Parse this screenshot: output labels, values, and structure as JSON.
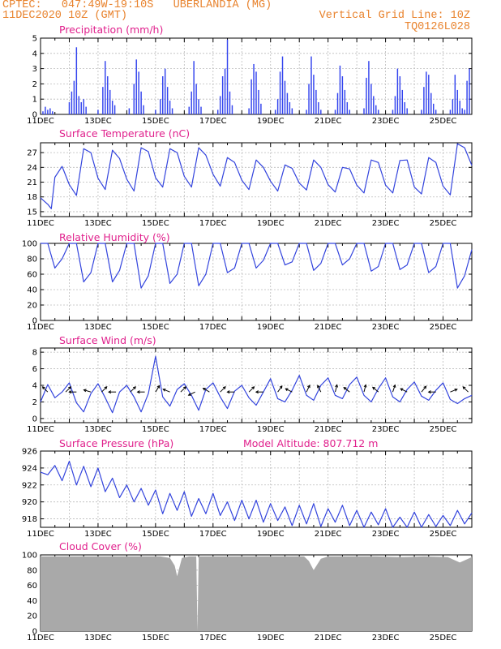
{
  "header": {
    "source_line": "CPTEC:   047:49W-19:10S   UBERLANDIA (MG)",
    "run_line": "11DEC2020 10Z (GMT)",
    "grid_note": "Vertical Grid Line: 10Z",
    "product_code": "TQ0126L028"
  },
  "colors": {
    "line": "#3344dd",
    "bar": "#3344ee",
    "cloud": "#a9a9a9",
    "title": "#e0208c",
    "header": "#e8822c"
  },
  "x_labels": [
    "11DEC",
    "13DEC",
    "15DEC",
    "17DEC",
    "19DEC",
    "21DEC",
    "23DEC",
    "25DEC"
  ],
  "x_range_hours": [
    0,
    360
  ],
  "chart_data": [
    {
      "type": "bar",
      "title": "Precipitation (mm/h)",
      "ylim": [
        0,
        5
      ],
      "yticks": [
        0,
        1,
        2,
        3,
        4,
        5
      ],
      "x": [
        2,
        4,
        6,
        8,
        10,
        24,
        26,
        28,
        30,
        32,
        34,
        36,
        38,
        48,
        52,
        54,
        56,
        58,
        60,
        62,
        74,
        78,
        80,
        82,
        84,
        86,
        96,
        100,
        102,
        104,
        106,
        108,
        110,
        124,
        126,
        128,
        130,
        132,
        134,
        148,
        150,
        152,
        154,
        156,
        158,
        160,
        174,
        176,
        178,
        180,
        182,
        184,
        196,
        198,
        200,
        202,
        204,
        206,
        208,
        210,
        222,
        224,
        226,
        228,
        230,
        232,
        234,
        246,
        248,
        250,
        252,
        254,
        256,
        258,
        270,
        272,
        274,
        276,
        278,
        280,
        282,
        294,
        296,
        298,
        300,
        302,
        304,
        306,
        318,
        320,
        322,
        324,
        326,
        328,
        330,
        342,
        344,
        346,
        348,
        350,
        352,
        354,
        356,
        358
      ],
      "values": [
        0.2,
        0.5,
        0.3,
        0.4,
        0.2,
        0.8,
        1.5,
        2.2,
        4.4,
        1.2,
        0.8,
        1.0,
        0.5,
        0.3,
        1.8,
        3.5,
        2.5,
        1.6,
        0.9,
        0.6,
        0.4,
        2.0,
        3.6,
        2.8,
        1.5,
        0.6,
        0.3,
        1.0,
        2.5,
        3.0,
        1.8,
        0.9,
        0.4,
        0.5,
        1.5,
        3.5,
        2.0,
        1.0,
        0.5,
        0.3,
        1.2,
        2.5,
        3.0,
        4.9,
        1.5,
        0.6,
        0.4,
        2.3,
        3.3,
        2.8,
        1.6,
        0.7,
        0.3,
        1.0,
        2.8,
        3.8,
        2.2,
        1.4,
        0.8,
        0.4,
        0.3,
        2.0,
        3.8,
        2.6,
        1.6,
        0.8,
        0.3,
        0.3,
        1.4,
        3.2,
        2.5,
        1.6,
        0.8,
        0.3,
        0.4,
        2.4,
        3.5,
        2.0,
        1.2,
        0.6,
        0.3,
        0.3,
        1.2,
        3.0,
        2.5,
        1.6,
        0.8,
        0.4,
        0.3,
        1.8,
        2.8,
        2.6,
        1.4,
        0.7,
        0.3,
        0.3,
        1.0,
        2.6,
        1.6,
        0.9,
        0.4,
        0.3,
        2.2,
        3.0
      ]
    },
    {
      "type": "line",
      "title": "Surface Temperature (nC)",
      "ylim": [
        14,
        29
      ],
      "yticks": [
        15,
        18,
        21,
        24,
        27
      ],
      "x": [
        0,
        6,
        9,
        12,
        18,
        24,
        30,
        36,
        42,
        48,
        54,
        60,
        66,
        72,
        78,
        84,
        90,
        96,
        102,
        108,
        114,
        120,
        126,
        132,
        138,
        144,
        150,
        156,
        162,
        168,
        174,
        180,
        186,
        192,
        198,
        204,
        210,
        216,
        222,
        228,
        234,
        240,
        246,
        252,
        258,
        264,
        270,
        276,
        282,
        288,
        294,
        300,
        306,
        312,
        318,
        324,
        330,
        336,
        342,
        348,
        354,
        360
      ],
      "values": [
        17.8,
        16.5,
        15.6,
        22.0,
        24.2,
        20.5,
        18.3,
        27.8,
        27.0,
        21.8,
        19.5,
        27.5,
        25.8,
        21.6,
        19.2,
        28.0,
        27.2,
        21.9,
        20.0,
        27.8,
        27.0,
        22.2,
        20.0,
        28.0,
        26.5,
        22.6,
        20.2,
        26.0,
        25.0,
        21.4,
        19.5,
        25.5,
        24.0,
        21.2,
        19.2,
        24.5,
        23.8,
        20.8,
        19.4,
        25.5,
        24.0,
        20.5,
        19.0,
        24.0,
        23.7,
        20.4,
        18.8,
        25.5,
        25.0,
        20.4,
        18.8,
        25.4,
        25.5,
        20.0,
        18.6,
        26.0,
        25.0,
        20.2,
        18.4,
        28.8,
        28.0,
        24.4
      ]
    },
    {
      "type": "line",
      "title": "Relative Humidity (%)",
      "ylim": [
        0,
        100
      ],
      "yticks": [
        0,
        20,
        40,
        60,
        80,
        100
      ],
      "x": [
        0,
        6,
        12,
        18,
        24,
        30,
        36,
        42,
        48,
        54,
        60,
        66,
        72,
        78,
        84,
        90,
        96,
        102,
        108,
        114,
        120,
        126,
        132,
        138,
        144,
        150,
        156,
        162,
        168,
        174,
        180,
        186,
        192,
        198,
        204,
        210,
        216,
        222,
        228,
        234,
        240,
        246,
        252,
        258,
        264,
        270,
        276,
        282,
        288,
        294,
        300,
        306,
        312,
        318,
        324,
        330,
        336,
        342,
        348,
        354,
        360
      ],
      "values": [
        100,
        100,
        68,
        80,
        100,
        100,
        50,
        62,
        100,
        100,
        50,
        65,
        100,
        100,
        42,
        58,
        100,
        100,
        48,
        60,
        100,
        100,
        45,
        60,
        100,
        100,
        62,
        68,
        100,
        100,
        68,
        78,
        100,
        100,
        72,
        76,
        100,
        100,
        65,
        74,
        100,
        100,
        72,
        80,
        100,
        100,
        64,
        70,
        100,
        100,
        66,
        72,
        100,
        100,
        62,
        70,
        100,
        100,
        42,
        58,
        92
      ]
    },
    {
      "type": "line",
      "title": "Surface Wind (m/s)",
      "ylim": [
        -0.5,
        8.5
      ],
      "yticks": [
        0,
        2,
        4,
        6,
        8
      ],
      "x": [
        0,
        6,
        12,
        18,
        24,
        30,
        36,
        42,
        48,
        54,
        60,
        66,
        72,
        78,
        84,
        90,
        96,
        102,
        108,
        114,
        120,
        126,
        132,
        138,
        144,
        150,
        156,
        162,
        168,
        174,
        180,
        186,
        192,
        198,
        204,
        210,
        216,
        222,
        228,
        234,
        240,
        246,
        252,
        258,
        264,
        270,
        276,
        282,
        288,
        294,
        300,
        306,
        312,
        318,
        324,
        330,
        336,
        342,
        348,
        354,
        360
      ],
      "values": [
        2.0,
        4.1,
        2.5,
        3.2,
        4.3,
        1.9,
        0.8,
        3.0,
        4.2,
        2.5,
        0.7,
        3.2,
        4.0,
        2.6,
        0.8,
        3.0,
        7.5,
        2.6,
        1.5,
        3.5,
        4.2,
        2.8,
        1.0,
        3.5,
        4.3,
        2.6,
        1.2,
        3.3,
        4.0,
        2.5,
        1.6,
        3.2,
        4.8,
        2.4,
        2.0,
        3.4,
        5.2,
        2.8,
        2.2,
        4.0,
        4.9,
        2.8,
        2.4,
        4.1,
        5.0,
        2.8,
        2.0,
        3.6,
        4.9,
        2.6,
        2.0,
        3.5,
        4.4,
        2.7,
        2.2,
        3.4,
        4.3,
        2.3,
        1.8,
        2.4,
        2.8
      ],
      "vectors": [
        {
          "x": 6,
          "u": -1,
          "v": 1
        },
        {
          "x": 21,
          "u": 1,
          "v": 1
        },
        {
          "x": 30,
          "u": -1,
          "v": 0
        },
        {
          "x": 42,
          "u": -1,
          "v": 0.3
        },
        {
          "x": 51,
          "u": 1,
          "v": 1
        },
        {
          "x": 63,
          "u": -1,
          "v": 0
        },
        {
          "x": 75,
          "u": 1,
          "v": 1
        },
        {
          "x": 87,
          "u": -1,
          "v": 0
        },
        {
          "x": 96,
          "u": 1,
          "v": 1.6
        },
        {
          "x": 108,
          "u": -1,
          "v": 0.4
        },
        {
          "x": 117,
          "u": 1,
          "v": 1
        },
        {
          "x": 129,
          "u": -1,
          "v": -0.5
        },
        {
          "x": 141,
          "u": -1,
          "v": 0.6
        },
        {
          "x": 150,
          "u": 1,
          "v": 1
        },
        {
          "x": 162,
          "u": -1,
          "v": 0
        },
        {
          "x": 174,
          "u": 1,
          "v": 1
        },
        {
          "x": 186,
          "u": -1,
          "v": 0
        },
        {
          "x": 198,
          "u": 1,
          "v": 1.4
        },
        {
          "x": 210,
          "u": -1,
          "v": 0.5
        },
        {
          "x": 222,
          "u": 0.7,
          "v": 1.5
        },
        {
          "x": 234,
          "u": -0.5,
          "v": 1
        },
        {
          "x": 246,
          "u": 0.4,
          "v": 1.6
        },
        {
          "x": 258,
          "u": -0.5,
          "v": 0.4
        },
        {
          "x": 270,
          "u": 0.4,
          "v": 1.6
        },
        {
          "x": 282,
          "u": -0.6,
          "v": 0.5
        },
        {
          "x": 294,
          "u": 0.4,
          "v": 1.2
        },
        {
          "x": 306,
          "u": -0.6,
          "v": 0.3
        },
        {
          "x": 318,
          "u": 0.8,
          "v": 1
        },
        {
          "x": 330,
          "u": -1,
          "v": 0
        },
        {
          "x": 342,
          "u": 1,
          "v": 0.4
        },
        {
          "x": 357,
          "u": -1,
          "v": 1
        }
      ]
    },
    {
      "type": "line",
      "title": "Surface Pressure (hPa)",
      "annotation": "Model Altitude: 807.712 m",
      "ylim": [
        917,
        926
      ],
      "yticks": [
        918,
        920,
        922,
        924,
        926
      ],
      "x": [
        0,
        6,
        12,
        18,
        24,
        30,
        36,
        42,
        48,
        54,
        60,
        66,
        72,
        78,
        84,
        90,
        96,
        102,
        108,
        114,
        120,
        126,
        132,
        138,
        144,
        150,
        156,
        162,
        168,
        174,
        180,
        186,
        192,
        198,
        204,
        210,
        216,
        222,
        228,
        234,
        240,
        246,
        252,
        258,
        264,
        270,
        276,
        282,
        288,
        294,
        300,
        306,
        312,
        318,
        324,
        330,
        336,
        342,
        348,
        354,
        360
      ],
      "values": [
        923.5,
        923.2,
        924.3,
        922.5,
        924.8,
        922.0,
        924.2,
        921.8,
        924.0,
        921.2,
        922.8,
        920.5,
        922.0,
        920.0,
        921.6,
        919.6,
        921.4,
        918.6,
        921.0,
        919.0,
        921.2,
        918.3,
        920.4,
        918.6,
        921.0,
        918.4,
        920.0,
        917.8,
        920.2,
        918.0,
        920.2,
        917.6,
        919.8,
        917.8,
        919.4,
        917.2,
        919.6,
        917.4,
        919.8,
        917.1,
        919.2,
        917.6,
        919.6,
        917.2,
        919.0,
        917.0,
        918.8,
        917.3,
        919.2,
        916.9,
        918.2,
        917.0,
        918.8,
        917.0,
        918.5,
        917.1,
        918.4,
        917.2,
        919.0,
        917.4,
        918.7
      ]
    },
    {
      "type": "area",
      "title": "Cloud Cover (%)",
      "ylim": [
        0,
        100
      ],
      "yticks": [
        0,
        20,
        40,
        60,
        80,
        100
      ],
      "x": [
        0,
        100,
        108,
        112,
        114,
        118,
        124,
        130,
        131,
        132,
        140,
        220,
        224,
        228,
        234,
        240,
        280,
        300,
        320,
        340,
        350,
        360
      ],
      "values": [
        98,
        98,
        96,
        86,
        72,
        96,
        98,
        98,
        0,
        98,
        98,
        98,
        92,
        80,
        95,
        98,
        98,
        97,
        98,
        97,
        90,
        97
      ]
    }
  ]
}
